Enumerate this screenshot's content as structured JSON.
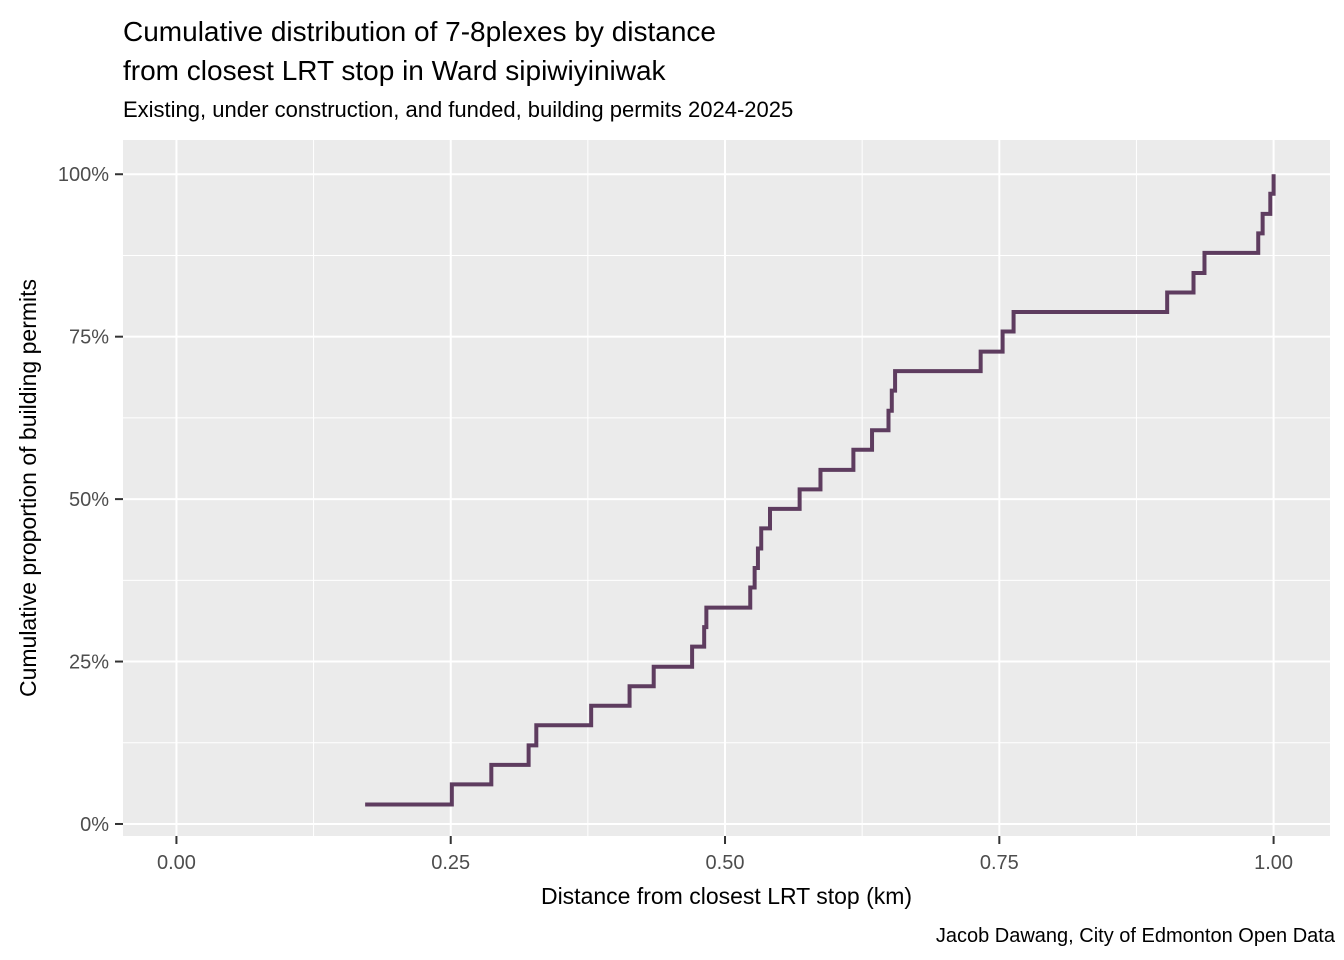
{
  "chart_data": {
    "type": "line",
    "subtype": "ecdf-step",
    "title_lines": [
      "Cumulative distribution of 7-8plexes by distance",
      "from closest LRT stop in Ward sipiwiyiniwak"
    ],
    "subtitle": "Existing, under construction, and funded, building permits 2024-2025",
    "xlabel": "Distance from closest LRT stop (km)",
    "ylabel": "Cumulative proportion of building permits",
    "caption": "Jacob Dawang, City of Edmonton Open Data",
    "legend": "none",
    "grid": true,
    "xlim": [
      -0.0487,
      1.0514
    ],
    "ylim": [
      -0.0185,
      1.0527
    ],
    "x_ticks": [
      {
        "value": 0.0,
        "label": "0.00"
      },
      {
        "value": 0.25,
        "label": "0.25"
      },
      {
        "value": 0.5,
        "label": "0.50"
      },
      {
        "value": 0.75,
        "label": "0.75"
      },
      {
        "value": 1.0,
        "label": "1.00"
      }
    ],
    "y_ticks": [
      {
        "value": 0.0,
        "label": "0%"
      },
      {
        "value": 0.25,
        "label": "25%"
      },
      {
        "value": 0.5,
        "label": "50%"
      },
      {
        "value": 0.75,
        "label": "75%"
      },
      {
        "value": 1.0,
        "label": "100%"
      }
    ],
    "x_minor_ticks": [
      0.125,
      0.375,
      0.625,
      0.875
    ],
    "y_minor_ticks": [
      0.125,
      0.375,
      0.625,
      0.875
    ],
    "n_points": 33,
    "columns": [
      "distance_km",
      "cumulative_pct"
    ],
    "points": [
      [
        0.172,
        3.0
      ],
      [
        0.251,
        6.1
      ],
      [
        0.287,
        9.1
      ],
      [
        0.321,
        12.1
      ],
      [
        0.328,
        15.2
      ],
      [
        0.378,
        18.2
      ],
      [
        0.413,
        21.2
      ],
      [
        0.435,
        24.2
      ],
      [
        0.47,
        27.3
      ],
      [
        0.481,
        30.3
      ],
      [
        0.483,
        33.3
      ],
      [
        0.523,
        36.4
      ],
      [
        0.527,
        39.4
      ],
      [
        0.53,
        42.4
      ],
      [
        0.533,
        45.5
      ],
      [
        0.541,
        48.5
      ],
      [
        0.568,
        51.5
      ],
      [
        0.587,
        54.5
      ],
      [
        0.617,
        57.6
      ],
      [
        0.634,
        60.6
      ],
      [
        0.649,
        63.6
      ],
      [
        0.652,
        66.7
      ],
      [
        0.655,
        69.7
      ],
      [
        0.733,
        72.7
      ],
      [
        0.753,
        75.8
      ],
      [
        0.763,
        78.8
      ],
      [
        0.903,
        81.8
      ],
      [
        0.927,
        84.8
      ],
      [
        0.937,
        87.9
      ],
      [
        0.986,
        90.9
      ],
      [
        0.99,
        93.9
      ],
      [
        0.997,
        97.0
      ],
      [
        1.0,
        100.0
      ]
    ],
    "colors": {
      "line": "#5e3c5f",
      "panel_background": "#ebebeb",
      "gridline": "#ffffff",
      "tick_mark": "#333333",
      "tick_label": "#4d4d4d",
      "text": "#000000",
      "page_background": "#ffffff"
    }
  }
}
